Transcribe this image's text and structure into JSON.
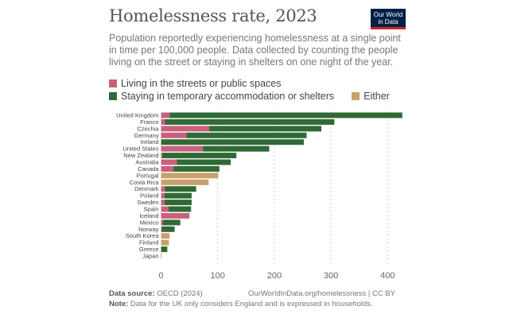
{
  "chart_data": {
    "type": "bar",
    "stacked": true,
    "orientation": "horizontal",
    "title": "Homelessness rate, 2023",
    "subtitle": "Population reportedly experiencing homelessness at a single point in time per 100,000 people. Data collected by counting the people living on the street or staying in shelters on one night of the year.",
    "categories": [
      "United Kingdom",
      "France",
      "Czechia",
      "Germany",
      "Ireland",
      "United States",
      "New Zealand",
      "Australia",
      "Canada",
      "Portugal",
      "Costa Rica",
      "Denmark",
      "Poland",
      "Sweden",
      "Spain",
      "Iceland",
      "Mexico",
      "Norway",
      "South Korea",
      "Finland",
      "Greece",
      "Japan"
    ],
    "series": [
      {
        "name": "Living in the streets or public spaces",
        "color": "#c8607c",
        "values": [
          15,
          7,
          85,
          45,
          0,
          74,
          2,
          28,
          22,
          0,
          0,
          7,
          6,
          6,
          13,
          50,
          3,
          1,
          0,
          0,
          0,
          1
        ]
      },
      {
        "name": "Staying in temporary accommodation or shelters",
        "color": "#2f6a35",
        "values": [
          411,
          299,
          198,
          212,
          252,
          117,
          131,
          95,
          81,
          0,
          0,
          55,
          48,
          48,
          40,
          0,
          31,
          23,
          0,
          0,
          11,
          0
        ]
      },
      {
        "name": "Either",
        "color": "#c9a06c",
        "values": [
          0,
          0,
          0,
          0,
          0,
          0,
          0,
          0,
          0,
          101,
          84,
          0,
          0,
          0,
          0,
          0,
          0,
          0,
          15,
          14,
          0,
          0
        ]
      }
    ],
    "xticks": [
      "0",
      "100",
      "200",
      "300",
      "400"
    ],
    "xlim": [
      0,
      440
    ],
    "grid": "vertical dashed",
    "legend_placement": "top-left"
  },
  "logo": {
    "line1": "Our World",
    "line2": "in Data"
  },
  "footer": {
    "source_label": "Data source:",
    "source": "OECD (2024)",
    "url": "OurWorldInData.org/homelessness | CC BY",
    "note_label": "Note:",
    "note": "Data for the UK only considers England and is expressed in households."
  }
}
